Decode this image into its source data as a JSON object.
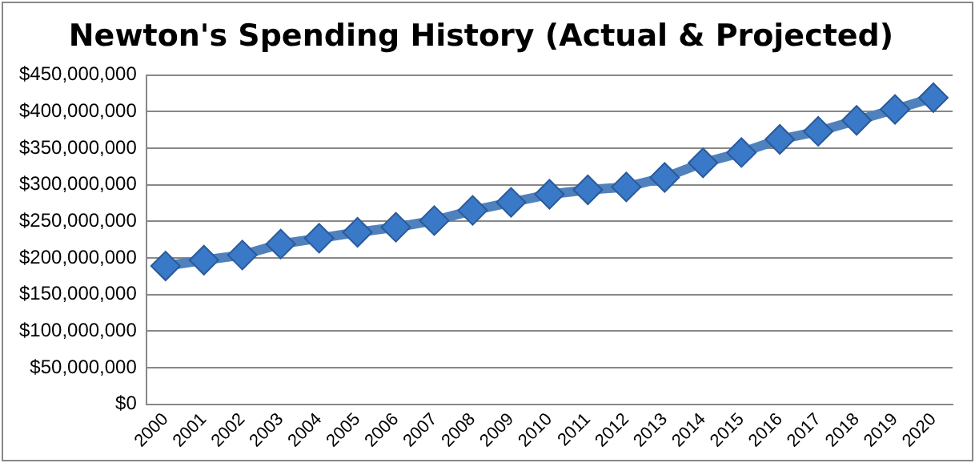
{
  "chart_data": {
    "type": "line",
    "title": "Newton's Spending History (Actual & Projected)",
    "categories": [
      "2000",
      "2001",
      "2002",
      "2003",
      "2004",
      "2005",
      "2006",
      "2007",
      "2008",
      "2009",
      "2010",
      "2011",
      "2012",
      "2013",
      "2014",
      "2015",
      "2016",
      "2017",
      "2018",
      "2019",
      "2020"
    ],
    "series": [
      {
        "color": "#4f81bd",
        "values": [
          189000000,
          197000000,
          204000000,
          219000000,
          227000000,
          235000000,
          242000000,
          251000000,
          265000000,
          276000000,
          287000000,
          293000000,
          297000000,
          310000000,
          330000000,
          344000000,
          362000000,
          373000000,
          388000000,
          403000000,
          419000000
        ]
      }
    ],
    "ylim": [
      0,
      450000000
    ],
    "yticks": [
      {
        "value": 0,
        "label": "$0"
      },
      {
        "value": 50000000,
        "label": "$50,000,000"
      },
      {
        "value": 100000000,
        "label": "$100,000,000"
      },
      {
        "value": 150000000,
        "label": "$150,000,000"
      },
      {
        "value": 200000000,
        "label": "$200,000,000"
      },
      {
        "value": 250000000,
        "label": "$250,000,000"
      },
      {
        "value": 300000000,
        "label": "$300,000,000"
      },
      {
        "value": 350000000,
        "label": "$350,000,000"
      },
      {
        "value": 400000000,
        "label": "$400,000,000"
      },
      {
        "value": 450000000,
        "label": "$450,000,000"
      }
    ],
    "grid": "y",
    "legend": false,
    "marker": "diamond",
    "line_style": "solid"
  }
}
